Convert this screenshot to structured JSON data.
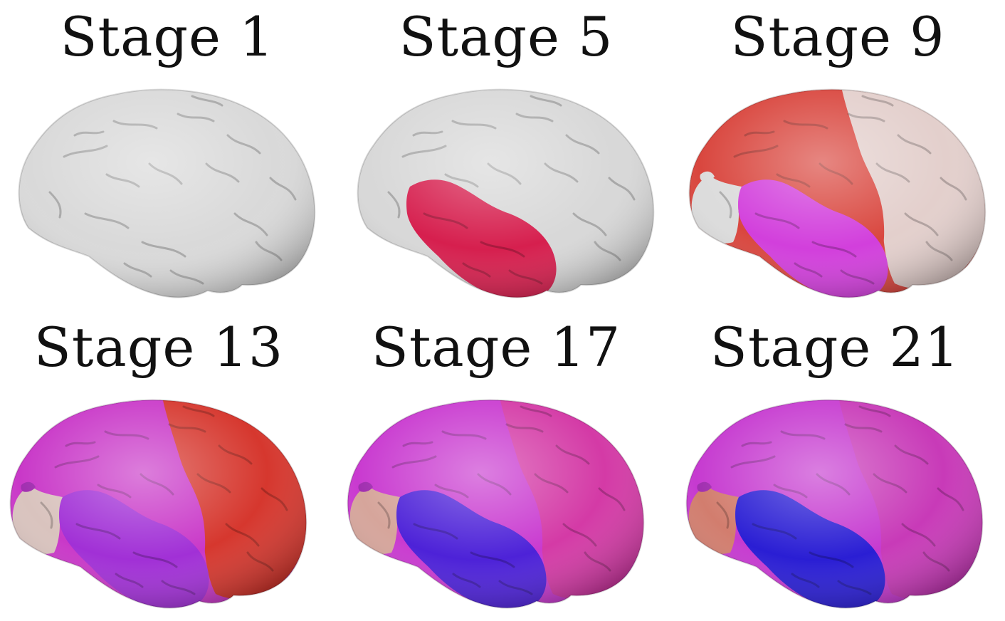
{
  "figure": {
    "stages": [
      {
        "label": "Stage 1",
        "regions": {
          "frontal": "#d9d9d9",
          "parietal": "#d9d9d9",
          "temporal": "#d9d9d9",
          "occipital": "#d9d9d9",
          "occipital_tip": "#d9d9d9"
        }
      },
      {
        "label": "Stage 5",
        "regions": {
          "frontal": "#d8d8d8",
          "parietal": "#d8d8d8",
          "temporal": "#d61f4e",
          "occipital": "#d8d8d8",
          "occipital_tip": "#d8d8d8"
        }
      },
      {
        "label": "Stage 9",
        "regions": {
          "frontal": "#e3cfcc",
          "parietal": "#d9463e",
          "temporal": "#d23fdc",
          "occipital": "#dcdcdc",
          "occipital_tip": "#dcdcdc"
        }
      },
      {
        "label": "Stage 13",
        "regions": {
          "frontal": "#d6372e",
          "parietal": "#c938c8",
          "temporal": "#a130d6",
          "occipital": "#d9c3be",
          "occipital_tip": "#a12fb0"
        }
      },
      {
        "label": "Stage 17",
        "regions": {
          "frontal": "#d43aa6",
          "parietal": "#c93ad0",
          "temporal": "#4d22d8",
          "occipital": "#d6a59b",
          "occipital_tip": "#a12fb0"
        }
      },
      {
        "label": "Stage 21",
        "regions": {
          "frontal": "#c83ab8",
          "parietal": "#c63ad0",
          "temporal": "#2a1ed4",
          "occipital": "#d27d6e",
          "occipital_tip": "#a12fb0"
        }
      }
    ]
  }
}
